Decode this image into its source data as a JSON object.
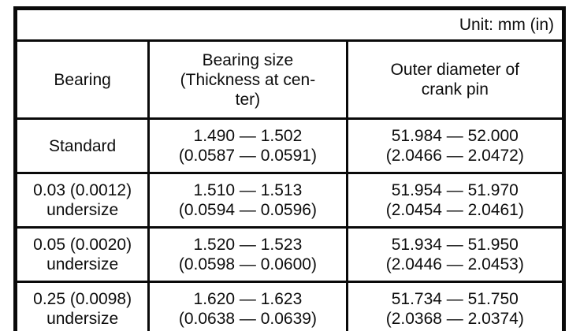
{
  "colors": {
    "border": "#0a0a0a",
    "background": "#ffffff",
    "text": "#0d0d0d"
  },
  "table": {
    "unit_label": "Unit: mm (in)",
    "columns": [
      "Bearing",
      "Bearing size\n(Thickness at cen-\nter)",
      "Outer diameter of\ncrank pin"
    ],
    "rows": [
      {
        "bearing": "Standard",
        "bearing_size": "1.490 — 1.502\n(0.0587 — 0.0591)",
        "crank_pin_od": "51.984 — 52.000\n(2.0466 — 2.0472)"
      },
      {
        "bearing": "0.03 (0.0012)\nundersize",
        "bearing_size": "1.510 — 1.513\n(0.0594 — 0.0596)",
        "crank_pin_od": "51.954 — 51.970\n(2.0454 — 2.0461)"
      },
      {
        "bearing": "0.05 (0.0020)\nundersize",
        "bearing_size": "1.520 — 1.523\n(0.0598 — 0.0600)",
        "crank_pin_od": "51.934 — 51.950\n(2.0446 — 2.0453)"
      },
      {
        "bearing": "0.25 (0.0098)\nundersize",
        "bearing_size": "1.620 — 1.623\n(0.0638 — 0.0639)",
        "crank_pin_od": "51.734 — 51.750\n(2.0368 — 2.0374)"
      }
    ]
  }
}
